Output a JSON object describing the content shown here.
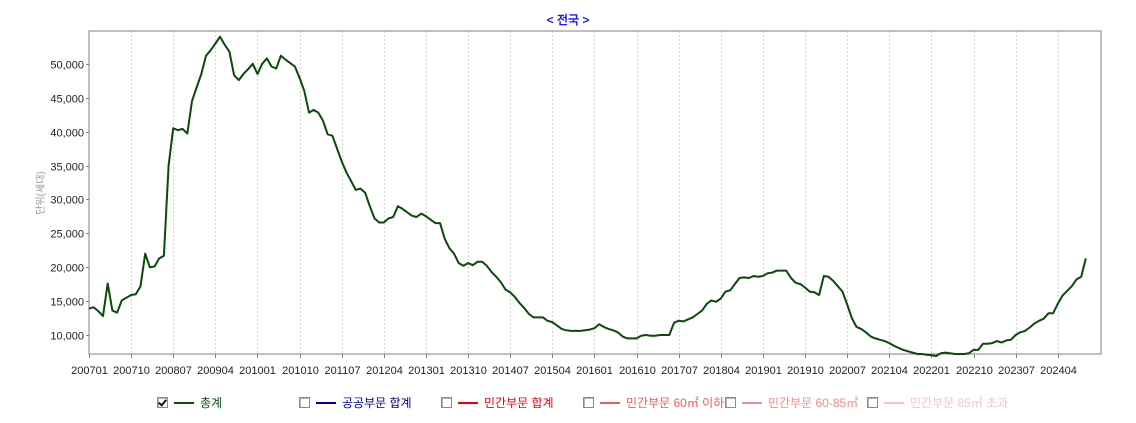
{
  "title": "< 전국 >",
  "chart_data": {
    "type": "line",
    "title": "< 전국 >",
    "xlabel": "",
    "ylabel": "단위(세대)",
    "ylim": [
      7000,
      54500
    ],
    "yticks": [
      10000,
      15000,
      20000,
      25000,
      30000,
      35000,
      40000,
      45000,
      50000
    ],
    "ytick_labels": [
      "10,000",
      "15,000",
      "20,000",
      "25,000",
      "30,000",
      "35,000",
      "40,000",
      "45,000",
      "50,000"
    ],
    "xtick_labels": [
      "200701",
      "200710",
      "200807",
      "200904",
      "201001",
      "201010",
      "201107",
      "201204",
      "201301",
      "201310",
      "201407",
      "201504",
      "201601",
      "201610",
      "201707",
      "201804",
      "201901",
      "201910",
      "202007",
      "202104",
      "202201",
      "202210",
      "202307",
      "202404"
    ],
    "grid": "vertical dotted",
    "legend_position": "bottom",
    "series": [
      {
        "name": "총계",
        "color": "#0a4a0a",
        "visible": true,
        "points": [
          [
            "200701",
            13900
          ],
          [
            "200702",
            14100
          ],
          [
            "200703",
            13500
          ],
          [
            "200704",
            12800
          ],
          [
            "200705",
            17600
          ],
          [
            "200706",
            13600
          ],
          [
            "200707",
            13300
          ],
          [
            "200708",
            15100
          ],
          [
            "200709",
            15500
          ],
          [
            "200710",
            15900
          ],
          [
            "200711",
            16000
          ],
          [
            "200712",
            17200
          ],
          [
            "200801",
            22000
          ],
          [
            "200802",
            20000
          ],
          [
            "200803",
            20100
          ],
          [
            "200804",
            21300
          ],
          [
            "200805",
            21700
          ],
          [
            "200806",
            35000
          ],
          [
            "200807",
            40500
          ],
          [
            "200808",
            40200
          ],
          [
            "200809",
            40400
          ],
          [
            "200810",
            39700
          ],
          [
            "200811",
            44500
          ],
          [
            "200812",
            46500
          ],
          [
            "200901",
            48500
          ],
          [
            "200902",
            51200
          ],
          [
            "200903",
            52000
          ],
          [
            "200904",
            53000
          ],
          [
            "200905",
            54000
          ],
          [
            "200906",
            52800
          ],
          [
            "200907",
            51800
          ],
          [
            "200908",
            48300
          ],
          [
            "200909",
            47600
          ],
          [
            "200910",
            48500
          ],
          [
            "200911",
            49200
          ],
          [
            "200912",
            50000
          ],
          [
            "201001",
            48500
          ],
          [
            "201002",
            50000
          ],
          [
            "201003",
            50800
          ],
          [
            "201004",
            49600
          ],
          [
            "201005",
            49300
          ],
          [
            "201006",
            51200
          ],
          [
            "201007",
            50600
          ],
          [
            "201008",
            50100
          ],
          [
            "201009",
            49600
          ],
          [
            "201010",
            47900
          ],
          [
            "201011",
            46000
          ],
          [
            "201012",
            42800
          ],
          [
            "201101",
            43200
          ],
          [
            "201102",
            42800
          ],
          [
            "201103",
            41600
          ],
          [
            "201104",
            39600
          ],
          [
            "201105",
            39400
          ],
          [
            "201106",
            37500
          ],
          [
            "201107",
            35600
          ],
          [
            "201108",
            34000
          ],
          [
            "201109",
            32700
          ],
          [
            "201110",
            31400
          ],
          [
            "201111",
            31600
          ],
          [
            "201112",
            31000
          ],
          [
            "201201",
            29000
          ],
          [
            "201202",
            27200
          ],
          [
            "201203",
            26600
          ],
          [
            "201204",
            26600
          ],
          [
            "201205",
            27200
          ],
          [
            "201206",
            27400
          ],
          [
            "201207",
            29000
          ],
          [
            "201208",
            28600
          ],
          [
            "201209",
            28100
          ],
          [
            "201210",
            27600
          ],
          [
            "201211",
            27400
          ],
          [
            "201212",
            27900
          ],
          [
            "201301",
            27500
          ],
          [
            "201302",
            27000
          ],
          [
            "201303",
            26500
          ],
          [
            "201304",
            26500
          ],
          [
            "201305",
            24200
          ],
          [
            "201306",
            22800
          ],
          [
            "201307",
            22000
          ],
          [
            "201308",
            20600
          ],
          [
            "201309",
            20200
          ],
          [
            "201310",
            20600
          ],
          [
            "201311",
            20300
          ],
          [
            "201312",
            20800
          ],
          [
            "201401",
            20800
          ],
          [
            "201402",
            20200
          ],
          [
            "201403",
            19300
          ],
          [
            "201404",
            18600
          ],
          [
            "201405",
            17800
          ],
          [
            "201406",
            16700
          ],
          [
            "201407",
            16300
          ],
          [
            "201408",
            15600
          ],
          [
            "201409",
            14700
          ],
          [
            "201410",
            14000
          ],
          [
            "201411",
            13100
          ],
          [
            "201412",
            12600
          ],
          [
            "201501",
            12600
          ],
          [
            "201502",
            12600
          ],
          [
            "201503",
            12100
          ],
          [
            "201504",
            11900
          ],
          [
            "201505",
            11400
          ],
          [
            "201506",
            10900
          ],
          [
            "201507",
            10700
          ],
          [
            "201508",
            10600
          ],
          [
            "201509",
            10600
          ],
          [
            "201510",
            10600
          ],
          [
            "201511",
            10700
          ],
          [
            "201512",
            10800
          ],
          [
            "201601",
            11000
          ],
          [
            "201602",
            11600
          ],
          [
            "201603",
            11200
          ],
          [
            "201604",
            10900
          ],
          [
            "201605",
            10700
          ],
          [
            "201606",
            10400
          ],
          [
            "201607",
            9800
          ],
          [
            "201608",
            9500
          ],
          [
            "201609",
            9500
          ],
          [
            "201610",
            9500
          ],
          [
            "201611",
            9900
          ],
          [
            "201612",
            10000
          ],
          [
            "201701",
            9900
          ],
          [
            "201702",
            9900
          ],
          [
            "201703",
            10000
          ],
          [
            "201704",
            10000
          ],
          [
            "201705",
            10000
          ],
          [
            "201706",
            11800
          ],
          [
            "201707",
            12100
          ],
          [
            "201708",
            12000
          ],
          [
            "201709",
            12300
          ],
          [
            "201710",
            12600
          ],
          [
            "201711",
            13100
          ],
          [
            "201712",
            13600
          ],
          [
            "201801",
            14600
          ],
          [
            "201802",
            15100
          ],
          [
            "201803",
            14900
          ],
          [
            "201804",
            15400
          ],
          [
            "201805",
            16400
          ],
          [
            "201806",
            16600
          ],
          [
            "201807",
            17500
          ],
          [
            "201808",
            18400
          ],
          [
            "201809",
            18500
          ],
          [
            "201810",
            18400
          ],
          [
            "201811",
            18700
          ],
          [
            "201812",
            18600
          ],
          [
            "201901",
            18700
          ],
          [
            "201902",
            19100
          ],
          [
            "201903",
            19200
          ],
          [
            "201904",
            19500
          ],
          [
            "201905",
            19500
          ],
          [
            "201906",
            19500
          ],
          [
            "201907",
            18400
          ],
          [
            "201908",
            17700
          ],
          [
            "201909",
            17500
          ],
          [
            "201910",
            17000
          ],
          [
            "201911",
            16400
          ],
          [
            "201912",
            16300
          ],
          [
            "202001",
            15900
          ],
          [
            "202002",
            18700
          ],
          [
            "202003",
            18600
          ],
          [
            "202004",
            18000
          ],
          [
            "202005",
            17200
          ],
          [
            "202006",
            16400
          ],
          [
            "202007",
            14500
          ],
          [
            "202008",
            12500
          ],
          [
            "202009",
            11200
          ],
          [
            "202010",
            10900
          ],
          [
            "202011",
            10400
          ],
          [
            "202012",
            9800
          ],
          [
            "202101",
            9500
          ],
          [
            "202102",
            9300
          ],
          [
            "202103",
            9100
          ],
          [
            "202104",
            8800
          ],
          [
            "202105",
            8400
          ],
          [
            "202106",
            8100
          ],
          [
            "202107",
            7800
          ],
          [
            "202108",
            7600
          ],
          [
            "202109",
            7400
          ],
          [
            "202110",
            7200
          ],
          [
            "202111",
            7200
          ],
          [
            "202112",
            7100
          ],
          [
            "202201",
            7000
          ],
          [
            "202202",
            6900
          ],
          [
            "202203",
            7300
          ],
          [
            "202204",
            7400
          ],
          [
            "202205",
            7300
          ],
          [
            "202206",
            7200
          ],
          [
            "202207",
            7200
          ],
          [
            "202208",
            7200
          ],
          [
            "202209",
            7300
          ],
          [
            "202210",
            7800
          ],
          [
            "202211",
            7800
          ],
          [
            "202212",
            8700
          ],
          [
            "202301",
            8700
          ],
          [
            "202302",
            8800
          ],
          [
            "202303",
            9100
          ],
          [
            "202304",
            8900
          ],
          [
            "202305",
            9200
          ],
          [
            "202306",
            9300
          ],
          [
            "202307",
            10000
          ],
          [
            "202308",
            10400
          ],
          [
            "202309",
            10600
          ],
          [
            "202310",
            11100
          ],
          [
            "202311",
            11700
          ],
          [
            "202312",
            12100
          ],
          [
            "202401",
            12400
          ],
          [
            "202402",
            13200
          ],
          [
            "202403",
            13200
          ],
          [
            "202404",
            14600
          ],
          [
            "202405",
            15800
          ],
          [
            "202406",
            16500
          ],
          [
            "202407",
            17200
          ],
          [
            "202408",
            18200
          ],
          [
            "202409",
            18600
          ],
          [
            "202410",
            21300
          ]
        ]
      },
      {
        "name": "공공부문 합계",
        "color": "#000099",
        "visible": false,
        "points": []
      },
      {
        "name": "민간부문 합계",
        "color": "#ee0000",
        "visible": false,
        "points": []
      },
      {
        "name": "민간부문 60㎡ 이하",
        "color": "#f25a5a",
        "visible": false,
        "points": []
      },
      {
        "name": "민간부문 60-85㎡",
        "color": "#f58a8a",
        "visible": false,
        "points": []
      },
      {
        "name": "민간부문 85㎡ 초과",
        "color": "#f9c4c4",
        "visible": false,
        "points": []
      }
    ]
  },
  "legend": [
    {
      "label": "총계",
      "color": "#0a4a0a",
      "text_color": "#0a4a0a",
      "checked": true
    },
    {
      "label": "공공부문 합계",
      "color": "#000099",
      "text_color": "#000099",
      "checked": false
    },
    {
      "label": "민간부문 합계",
      "color": "#ee0000",
      "text_color": "#ee0000",
      "checked": false
    },
    {
      "label": "민간부문 60㎡ 이하",
      "color": "#f25a5a",
      "text_color": "#f25a5a",
      "checked": false
    },
    {
      "label": "민간부문 60-85㎡",
      "color": "#f58a8a",
      "text_color": "#f58a8a",
      "checked": false
    },
    {
      "label": "민간부문 85㎡ 초과",
      "color": "#f9c4c4",
      "text_color": "#f9c4c4",
      "checked": false
    }
  ]
}
